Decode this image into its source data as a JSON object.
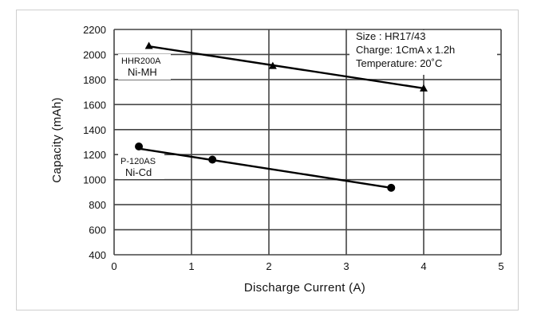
{
  "chart_data": {
    "type": "line",
    "x_axis": {
      "label": "Discharge Current (A)",
      "range": [
        0,
        5
      ],
      "ticks": [
        0,
        1,
        2,
        3,
        4,
        5
      ]
    },
    "y_axis": {
      "label": "Capacity (mAh)",
      "range": [
        400,
        2200
      ],
      "ticks": [
        400,
        600,
        800,
        1000,
        1200,
        1400,
        1600,
        1800,
        2000,
        2200
      ]
    },
    "grid": true,
    "annotation": [
      "Size : HR17/43",
      "Charge: 1CmA x 1.2h",
      "Temperature: 20˚C"
    ],
    "series": [
      {
        "model": "HHR200A",
        "chemistry": "Ni-MH",
        "marker": "triangle",
        "points": [
          {
            "x": 0.45,
            "y": 2070
          },
          {
            "x": 2.05,
            "y": 1910
          },
          {
            "x": 4.0,
            "y": 1730
          }
        ],
        "fit": [
          {
            "x": 0.45,
            "y": 2065
          },
          {
            "x": 4.0,
            "y": 1730
          }
        ]
      },
      {
        "model": "P-120AS",
        "chemistry": "Ni-Cd",
        "marker": "circle",
        "points": [
          {
            "x": 0.32,
            "y": 1265
          },
          {
            "x": 1.27,
            "y": 1160
          },
          {
            "x": 3.58,
            "y": 935
          }
        ],
        "fit": [
          {
            "x": 0.32,
            "y": 1248
          },
          {
            "x": 3.58,
            "y": 935
          }
        ]
      }
    ]
  }
}
